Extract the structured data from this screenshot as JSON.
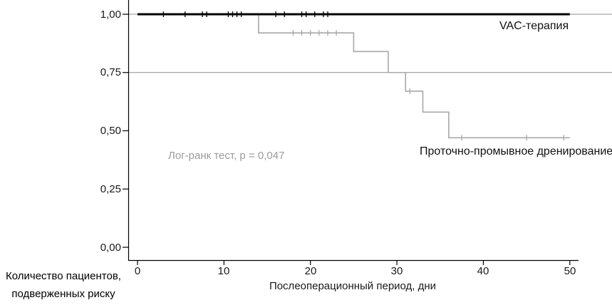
{
  "chart_data": {
    "type": "line",
    "subtype": "kaplan-meier-step-survival",
    "title": "",
    "xlabel": "Послеоперационный период, дни",
    "ylabel": "",
    "xlim": [
      0,
      50
    ],
    "ylim": [
      0.0,
      1.0
    ],
    "grid": "reference lines at 1.00 and 0.75 only, full width",
    "x_ticks": [
      {
        "label": "0",
        "value": 0
      },
      {
        "label": "10",
        "value": 10
      },
      {
        "label": "20",
        "value": 20
      },
      {
        "label": "30",
        "value": 30
      },
      {
        "label": "40",
        "value": 40
      },
      {
        "label": "50",
        "value": 50
      }
    ],
    "y_ticks": [
      {
        "label": "1,00",
        "value": 1.0
      },
      {
        "label": "0,75",
        "value": 0.75
      },
      {
        "label": "0,50",
        "value": 0.5
      },
      {
        "label": "0,25",
        "value": 0.25
      },
      {
        "label": "0,00",
        "value": 0.0
      }
    ],
    "reference_lines": [
      1.0,
      0.75
    ],
    "annotation": "Лог-ранк тест, p = 0,047",
    "series": [
      {
        "name": "VAC-терапия",
        "color": "#000000",
        "stroke_width": 3,
        "steps": [
          [
            0,
            1.0
          ],
          [
            50,
            1.0
          ]
        ],
        "censor_marks": [
          [
            3,
            1.0
          ],
          [
            5.5,
            1.0
          ],
          [
            7.5,
            1.0
          ],
          [
            8,
            1.0
          ],
          [
            10.5,
            1.0
          ],
          [
            11,
            1.0
          ],
          [
            11.5,
            1.0
          ],
          [
            12,
            1.0
          ],
          [
            16,
            1.0
          ],
          [
            17,
            1.0
          ],
          [
            19,
            1.0
          ],
          [
            19.5,
            1.0
          ],
          [
            20.5,
            1.0
          ],
          [
            21.5,
            1.0
          ],
          [
            22,
            1.0
          ]
        ]
      },
      {
        "name": "Проточно-промывное дренирование",
        "color": "#a8a8a8",
        "stroke_width": 1.6,
        "steps": [
          [
            0,
            1.0
          ],
          [
            14,
            1.0
          ],
          [
            14,
            0.92
          ],
          [
            25,
            0.92
          ],
          [
            25,
            0.84
          ],
          [
            29,
            0.84
          ],
          [
            29,
            0.75
          ],
          [
            31,
            0.75
          ],
          [
            31,
            0.67
          ],
          [
            33,
            0.67
          ],
          [
            33,
            0.58
          ],
          [
            36,
            0.58
          ],
          [
            36,
            0.47
          ],
          [
            50,
            0.47
          ]
        ],
        "censor_marks": [
          [
            18,
            0.92
          ],
          [
            19,
            0.92
          ],
          [
            20,
            0.92
          ],
          [
            21,
            0.92
          ],
          [
            22,
            0.92
          ],
          [
            23,
            0.92
          ],
          [
            31.5,
            0.67
          ],
          [
            37.5,
            0.47
          ],
          [
            45,
            0.47
          ],
          [
            49.3,
            0.47
          ]
        ]
      }
    ]
  },
  "risk_table_caption": {
    "line1": "Количество пациентов,",
    "line2": "подверженных риску"
  }
}
